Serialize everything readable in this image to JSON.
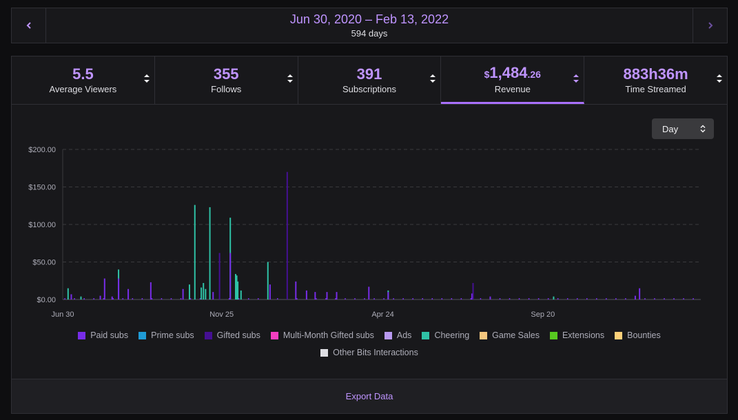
{
  "date_nav": {
    "range": "Jun 30, 2020 – Feb 13, 2022",
    "days": "594 days",
    "prev_icon": "chevron-left-icon",
    "next_icon": "chevron-right-icon"
  },
  "stats": [
    {
      "value": "5.5",
      "label": "Average Viewers"
    },
    {
      "value": "355",
      "label": "Follows"
    },
    {
      "value": "391",
      "label": "Subscriptions"
    },
    {
      "currency": "$",
      "value": "1,484",
      "decimal": ".26",
      "label": "Revenue",
      "active": true
    },
    {
      "value": "883h36m",
      "label": "Time Streamed"
    }
  ],
  "period_select": {
    "value": "Day"
  },
  "legend": [
    {
      "label": "Paid subs",
      "color": "#772ce8"
    },
    {
      "label": "Prime subs",
      "color": "#1f9bd6"
    },
    {
      "label": "Gifted subs",
      "color": "#451093"
    },
    {
      "label": "Multi-Month Gifted subs",
      "color": "#f43ec0"
    },
    {
      "label": "Ads",
      "color": "#b899f0"
    },
    {
      "label": "Cheering",
      "color": "#2fc2a6"
    },
    {
      "label": "Game Sales",
      "color": "#f5c77e"
    },
    {
      "label": "Extensions",
      "color": "#57c920"
    },
    {
      "label": "Bounties",
      "color": "#fdd079"
    },
    {
      "label": "Other Bits Interactions",
      "color": "#dedee3"
    }
  ],
  "export": {
    "label": "Export Data"
  },
  "chart_data": {
    "type": "bar",
    "ylim": [
      0,
      200
    ],
    "ytick_labels": [
      "$0.00",
      "$50.00",
      "$100.00",
      "$150.00",
      "$200.00"
    ],
    "yticks": [
      0,
      50,
      100,
      150,
      200
    ],
    "xtick_labels": [
      "Jun 30",
      "Nov 25",
      "Apr 24",
      "Sep 20"
    ],
    "xtick_days": [
      0,
      148,
      298,
      447
    ],
    "total_days": 594,
    "grid": true,
    "legend_position": "bottom",
    "bars": [
      {
        "day": 5,
        "series": "Cheering",
        "value": 15
      },
      {
        "day": 8,
        "series": "Paid subs",
        "value": 7
      },
      {
        "day": 17,
        "series": "Cheering",
        "value": 4
      },
      {
        "day": 35,
        "series": "Paid subs",
        "value": 5
      },
      {
        "day": 39,
        "series": "Paid subs",
        "value": 28
      },
      {
        "day": 46,
        "series": "Paid subs",
        "value": 4
      },
      {
        "day": 52,
        "series": "Cheering",
        "value": 40
      },
      {
        "day": 52,
        "series": "Paid subs",
        "value": 28
      },
      {
        "day": 61,
        "series": "Paid subs",
        "value": 14
      },
      {
        "day": 82,
        "series": "Paid subs",
        "value": 23
      },
      {
        "day": 112,
        "series": "Paid subs",
        "value": 14
      },
      {
        "day": 118,
        "series": "Cheering",
        "value": 20
      },
      {
        "day": 123,
        "series": "Cheering",
        "value": 126
      },
      {
        "day": 129,
        "series": "Cheering",
        "value": 16
      },
      {
        "day": 131,
        "series": "Cheering",
        "value": 22
      },
      {
        "day": 133,
        "series": "Cheering",
        "value": 14
      },
      {
        "day": 137,
        "series": "Cheering",
        "value": 123
      },
      {
        "day": 140,
        "series": "Paid subs",
        "value": 10
      },
      {
        "day": 146,
        "series": "Gifted subs",
        "value": 62
      },
      {
        "day": 156,
        "series": "Cheering",
        "value": 109
      },
      {
        "day": 156,
        "series": "Paid subs",
        "value": 62
      },
      {
        "day": 161,
        "series": "Cheering",
        "value": 34
      },
      {
        "day": 162,
        "series": "Cheering",
        "value": 32
      },
      {
        "day": 163,
        "series": "Cheering",
        "value": 24
      },
      {
        "day": 166,
        "series": "Cheering",
        "value": 12
      },
      {
        "day": 191,
        "series": "Cheering",
        "value": 50
      },
      {
        "day": 193,
        "series": "Paid subs",
        "value": 20
      },
      {
        "day": 209,
        "series": "Gifted subs",
        "value": 170
      },
      {
        "day": 217,
        "series": "Paid subs",
        "value": 24
      },
      {
        "day": 227,
        "series": "Paid subs",
        "value": 12
      },
      {
        "day": 235,
        "series": "Paid subs",
        "value": 10
      },
      {
        "day": 246,
        "series": "Paid subs",
        "value": 10
      },
      {
        "day": 255,
        "series": "Paid subs",
        "value": 10
      },
      {
        "day": 285,
        "series": "Paid subs",
        "value": 17
      },
      {
        "day": 303,
        "series": "Cheering",
        "value": 12
      },
      {
        "day": 303,
        "series": "Paid subs",
        "value": 10
      },
      {
        "day": 381,
        "series": "Paid subs",
        "value": 8
      },
      {
        "day": 382,
        "series": "Paid subs",
        "value": 8
      },
      {
        "day": 382,
        "series": "Gifted subs",
        "value": 22
      },
      {
        "day": 398,
        "series": "Paid subs",
        "value": 4
      },
      {
        "day": 457,
        "series": "Cheering",
        "value": 4
      },
      {
        "day": 533,
        "series": "Paid subs",
        "value": 5
      },
      {
        "day": 537,
        "series": "Paid subs",
        "value": 15
      }
    ]
  }
}
